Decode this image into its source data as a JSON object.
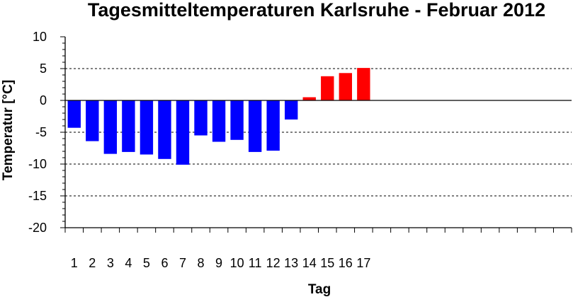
{
  "chart_data": {
    "type": "bar",
    "title": "Tagesmitteltemperaturen Karlsruhe - Februar 2012",
    "xlabel": "Tag",
    "ylabel": "Temperatur [°C]",
    "ylim": [
      -20,
      10
    ],
    "y_ticks": [
      10,
      5,
      0,
      -5,
      -10,
      -15,
      -20
    ],
    "y_grid_values": [
      5,
      -5,
      -10,
      -15
    ],
    "x_slots": 28,
    "categories": [
      "1",
      "2",
      "3",
      "4",
      "5",
      "6",
      "7",
      "8",
      "9",
      "10",
      "11",
      "12",
      "13",
      "14",
      "15",
      "16",
      "17"
    ],
    "values": [
      -4.3,
      -6.4,
      -8.4,
      -8.1,
      -8.5,
      -9.2,
      -10.1,
      -5.5,
      -6.5,
      -6.2,
      -8.1,
      -7.9,
      -3.0,
      0.5,
      3.8,
      4.3,
      5.1
    ],
    "colors": {
      "negative": "#0000ff",
      "positive": "#ff0000"
    },
    "grid": true,
    "legend": "none"
  }
}
